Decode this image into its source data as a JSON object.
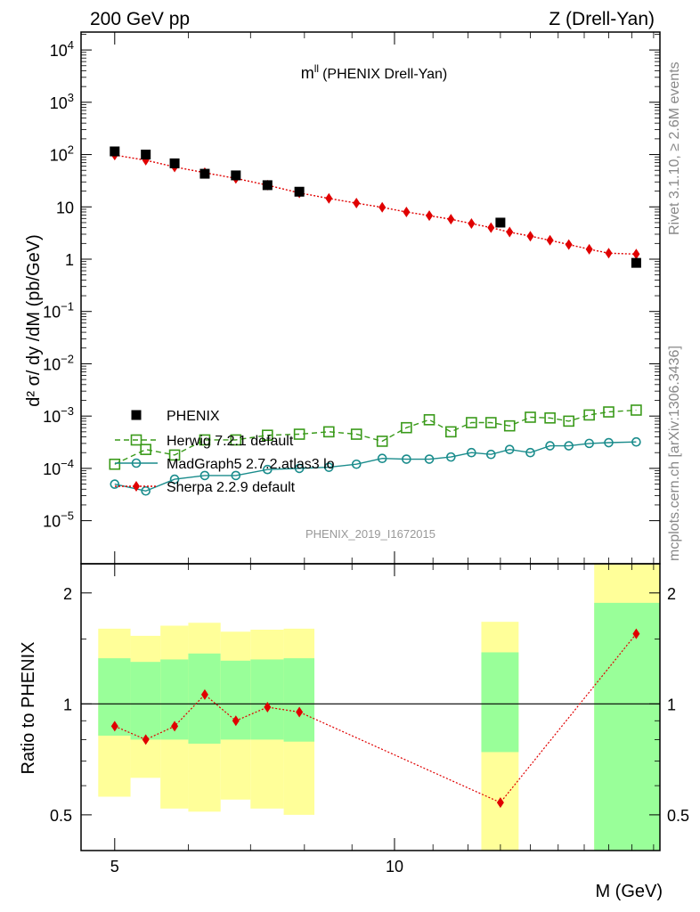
{
  "header": {
    "left": "200 GeV pp",
    "right": "Z (Drell-Yan)",
    "rivet": "Rivet 3.1.10, ≥ 2.6M events",
    "source": "mcplots.cern.ch [arXiv:1306.3436]",
    "analysis_id": "PHENIX_2019_I1672015"
  },
  "chart_data": {
    "type": "scatter",
    "title_main": "m",
    "title_sup": "ll",
    "title_rest": "(PHENIX Drell-Yan)",
    "ylabel": "d² σ/ dy /dM (pb/GeV)",
    "ratio_ylabel": "Ratio to PHENIX",
    "xlabel": "M (GeV)",
    "x_scale": "log",
    "xlim": [
      4.6,
      19.3
    ],
    "y_scale": "log",
    "ylim": [
      1.5e-06,
      22000.0
    ],
    "ratio_ylim": [
      0.4,
      2.4
    ],
    "x_ticks": [
      "5",
      "10"
    ],
    "y_ticks": [
      {
        "base": "10",
        "exp": "4",
        "v": 10000
      },
      {
        "base": "10",
        "exp": "3",
        "v": 1000
      },
      {
        "base": "10",
        "exp": "2",
        "v": 100
      },
      {
        "base": "10",
        "exp": "",
        "v": 10
      },
      {
        "base": "1",
        "exp": "",
        "v": 1
      },
      {
        "base": "10",
        "exp": "−1",
        "v": 0.1
      },
      {
        "base": "10",
        "exp": "−2",
        "v": 0.01
      },
      {
        "base": "10",
        "exp": "−3",
        "v": 0.001
      },
      {
        "base": "10",
        "exp": "−4",
        "v": 0.0001
      },
      {
        "base": "10",
        "exp": "−5",
        "v": 1e-05
      }
    ],
    "ratio_ticks": [
      {
        "label": "0.5",
        "v": 0.5
      },
      {
        "label": "1",
        "v": 1
      },
      {
        "label": "2",
        "v": 2
      }
    ],
    "data_color": "#000000",
    "series": [
      {
        "name": "PHENIX",
        "color": "#000000",
        "marker": "square",
        "x": [
          5.0,
          5.4,
          5.8,
          6.25,
          6.75,
          7.3,
          7.9,
          13.0,
          18.2
        ],
        "y": [
          115,
          100,
          68,
          43,
          40,
          26,
          19.5,
          5.0,
          0.85
        ]
      },
      {
        "name": "Herwig 7.2.1 default",
        "color": "#3a9a1a",
        "marker": "open-square",
        "line": "dashed",
        "x": [
          5.0,
          5.4,
          5.8,
          6.25,
          6.75,
          7.3,
          7.9,
          8.5,
          9.1,
          9.7,
          10.3,
          10.9,
          11.5,
          12.1,
          12.7,
          13.3,
          14.0,
          14.7,
          15.4,
          16.2,
          17.0,
          18.2
        ],
        "y": [
          0.00012,
          0.00023,
          0.00018,
          0.00035,
          0.00035,
          0.00043,
          0.00045,
          0.0005,
          0.00045,
          0.00033,
          0.0006,
          0.00085,
          0.0005,
          0.00075,
          0.00075,
          0.00065,
          0.00095,
          0.00092,
          0.0008,
          0.00105,
          0.0012,
          0.0013
        ]
      },
      {
        "name": "MadGraph5 2.7.2.atlas3 lo",
        "color": "#1a8c8c",
        "marker": "open-circle",
        "line": "solid",
        "x": [
          5.0,
          5.4,
          5.8,
          6.25,
          6.75,
          7.3,
          7.9,
          8.5,
          9.1,
          9.7,
          10.3,
          10.9,
          11.5,
          12.1,
          12.7,
          13.3,
          14.0,
          14.7,
          15.4,
          16.2,
          17.0,
          18.2
        ],
        "y": [
          5e-05,
          3.7e-05,
          6.2e-05,
          7.3e-05,
          7.3e-05,
          9.5e-05,
          0.0001,
          0.000105,
          0.00012,
          0.000155,
          0.00015,
          0.00015,
          0.000165,
          0.0002,
          0.000185,
          0.00023,
          0.0002,
          0.00027,
          0.00027,
          0.0003,
          0.00031,
          0.00032
        ]
      },
      {
        "name": "Sherpa 2.2.9 default",
        "color": "#e00000",
        "marker": "diamond",
        "line": "dotted",
        "x": [
          5.0,
          5.4,
          5.8,
          6.25,
          6.75,
          7.3,
          7.9,
          8.5,
          9.1,
          9.7,
          10.3,
          10.9,
          11.5,
          12.1,
          12.7,
          13.3,
          14.0,
          14.7,
          15.4,
          16.2,
          17.0,
          18.2
        ],
        "y": [
          98,
          78,
          58,
          45,
          35,
          26,
          18.5,
          14.5,
          11.8,
          9.8,
          8.0,
          6.8,
          5.8,
          4.8,
          4.0,
          3.3,
          2.75,
          2.3,
          1.9,
          1.55,
          1.3,
          1.25
        ]
      }
    ],
    "ratio_bands": [
      {
        "x0": 4.8,
        "x1": 5.2,
        "y_lo": 0.56,
        "y_hi": 1.6,
        "g_lo": 0.82,
        "g_hi": 1.33
      },
      {
        "x0": 5.2,
        "x1": 5.6,
        "y_lo": 0.63,
        "y_hi": 1.53,
        "g_lo": 0.8,
        "g_hi": 1.3
      },
      {
        "x0": 5.6,
        "x1": 6.0,
        "y_lo": 0.52,
        "y_hi": 1.63,
        "g_lo": 0.8,
        "g_hi": 1.32
      },
      {
        "x0": 6.0,
        "x1": 6.5,
        "y_lo": 0.51,
        "y_hi": 1.66,
        "g_lo": 0.78,
        "g_hi": 1.37
      },
      {
        "x0": 6.5,
        "x1": 7.0,
        "y_lo": 0.55,
        "y_hi": 1.57,
        "g_lo": 0.8,
        "g_hi": 1.31
      },
      {
        "x0": 7.0,
        "x1": 7.6,
        "y_lo": 0.52,
        "y_hi": 1.59,
        "g_lo": 0.8,
        "g_hi": 1.32
      },
      {
        "x0": 7.6,
        "x1": 8.2,
        "y_lo": 0.5,
        "y_hi": 1.6,
        "g_lo": 0.79,
        "g_hi": 1.33
      },
      {
        "x0": 12.4,
        "x1": 13.6,
        "y_lo": 0.3,
        "y_hi": 1.67,
        "g_lo": 0.74,
        "g_hi": 1.38
      },
      {
        "x0": 16.4,
        "x1": 20.0,
        "y_lo": 0.3,
        "y_hi": 3.0,
        "g_lo": 0.3,
        "g_hi": 1.88
      }
    ],
    "ratio_series": {
      "name": "Sherpa 2.2.9 default",
      "color": "#e00000",
      "x": [
        5.0,
        5.4,
        5.8,
        6.25,
        6.75,
        7.3,
        7.9,
        13.0,
        18.2
      ],
      "y": [
        0.87,
        0.8,
        0.87,
        1.06,
        0.9,
        0.98,
        0.95,
        0.54,
        1.55
      ]
    }
  }
}
